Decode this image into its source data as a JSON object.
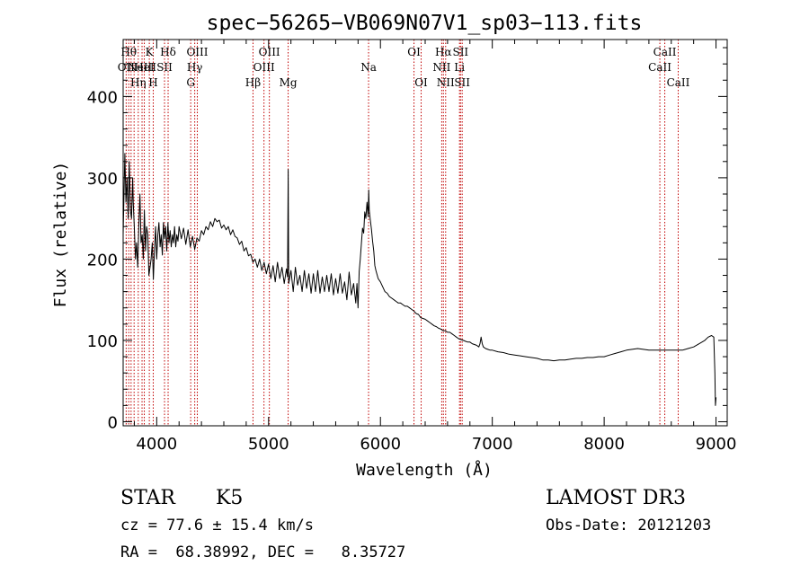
{
  "chart_data": {
    "type": "line",
    "title": "spec−56265−VB069N07V1_sp03−113.fits",
    "xlabel": "Wavelength (Å)",
    "ylabel": "Flux (relative)",
    "xlim": [
      3700,
      9100
    ],
    "ylim": [
      -5,
      470
    ],
    "x_ticks": [
      4000,
      5000,
      6000,
      7000,
      8000,
      9000
    ],
    "y_ticks": [
      0,
      100,
      200,
      300,
      400
    ],
    "series": [
      {
        "name": "flux",
        "points": [
          [
            3700,
            230
          ],
          [
            3715,
            330
          ],
          [
            3725,
            270
          ],
          [
            3735,
            300
          ],
          [
            3745,
            250
          ],
          [
            3755,
            320
          ],
          [
            3765,
            260
          ],
          [
            3775,
            250
          ],
          [
            3785,
            300
          ],
          [
            3790,
            270
          ],
          [
            3800,
            240
          ],
          [
            3810,
            200
          ],
          [
            3820,
            220
          ],
          [
            3830,
            190
          ],
          [
            3840,
            240
          ],
          [
            3850,
            280
          ],
          [
            3860,
            220
          ],
          [
            3870,
            230
          ],
          [
            3880,
            200
          ],
          [
            3890,
            260
          ],
          [
            3900,
            210
          ],
          [
            3910,
            240
          ],
          [
            3920,
            230
          ],
          [
            3930,
            180
          ],
          [
            3940,
            190
          ],
          [
            3950,
            200
          ],
          [
            3960,
            220
          ],
          [
            3970,
            175
          ],
          [
            3980,
            210
          ],
          [
            3990,
            240
          ],
          [
            4000,
            200
          ],
          [
            4010,
            230
          ],
          [
            4020,
            245
          ],
          [
            4030,
            215
          ],
          [
            4040,
            230
          ],
          [
            4050,
            205
          ],
          [
            4060,
            245
          ],
          [
            4070,
            225
          ],
          [
            4080,
            240
          ],
          [
            4090,
            210
          ],
          [
            4100,
            245
          ],
          [
            4110,
            220
          ],
          [
            4120,
            235
          ],
          [
            4130,
            215
          ],
          [
            4140,
            230
          ],
          [
            4150,
            220
          ],
          [
            4160,
            240
          ],
          [
            4170,
            215
          ],
          [
            4180,
            230
          ],
          [
            4190,
            222
          ],
          [
            4200,
            240
          ],
          [
            4220,
            225
          ],
          [
            4240,
            238
          ],
          [
            4260,
            218
          ],
          [
            4280,
            236
          ],
          [
            4300,
            215
          ],
          [
            4320,
            228
          ],
          [
            4340,
            212
          ],
          [
            4360,
            226
          ],
          [
            4380,
            222
          ],
          [
            4400,
            235
          ],
          [
            4420,
            230
          ],
          [
            4440,
            240
          ],
          [
            4460,
            236
          ],
          [
            4480,
            246
          ],
          [
            4500,
            240
          ],
          [
            4520,
            250
          ],
          [
            4540,
            246
          ],
          [
            4560,
            248
          ],
          [
            4580,
            238
          ],
          [
            4600,
            242
          ],
          [
            4620,
            236
          ],
          [
            4640,
            240
          ],
          [
            4660,
            230
          ],
          [
            4680,
            236
          ],
          [
            4700,
            228
          ],
          [
            4720,
            226
          ],
          [
            4740,
            218
          ],
          [
            4760,
            222
          ],
          [
            4780,
            210
          ],
          [
            4800,
            214
          ],
          [
            4820,
            204
          ],
          [
            4840,
            206
          ],
          [
            4860,
            196
          ],
          [
            4880,
            200
          ],
          [
            4900,
            190
          ],
          [
            4920,
            200
          ],
          [
            4940,
            186
          ],
          [
            4960,
            196
          ],
          [
            4980,
            182
          ],
          [
            5000,
            194
          ],
          [
            5020,
            176
          ],
          [
            5040,
            192
          ],
          [
            5060,
            172
          ],
          [
            5080,
            196
          ],
          [
            5100,
            176
          ],
          [
            5120,
            190
          ],
          [
            5140,
            170
          ],
          [
            5160,
            188
          ],
          [
            5170,
            178
          ],
          [
            5175,
            310
          ],
          [
            5180,
            170
          ],
          [
            5200,
            186
          ],
          [
            5220,
            160
          ],
          [
            5240,
            190
          ],
          [
            5260,
            168
          ],
          [
            5280,
            180
          ],
          [
            5300,
            160
          ],
          [
            5320,
            186
          ],
          [
            5340,
            164
          ],
          [
            5360,
            182
          ],
          [
            5380,
            158
          ],
          [
            5400,
            182
          ],
          [
            5420,
            160
          ],
          [
            5440,
            186
          ],
          [
            5460,
            158
          ],
          [
            5480,
            178
          ],
          [
            5500,
            160
          ],
          [
            5520,
            180
          ],
          [
            5540,
            160
          ],
          [
            5560,
            182
          ],
          [
            5580,
            156
          ],
          [
            5600,
            176
          ],
          [
            5620,
            158
          ],
          [
            5640,
            182
          ],
          [
            5660,
            158
          ],
          [
            5680,
            172
          ],
          [
            5700,
            150
          ],
          [
            5720,
            184
          ],
          [
            5740,
            156
          ],
          [
            5760,
            170
          ],
          [
            5780,
            146
          ],
          [
            5790,
            170
          ],
          [
            5800,
            140
          ],
          [
            5810,
            185
          ],
          [
            5820,
            200
          ],
          [
            5830,
            220
          ],
          [
            5840,
            238
          ],
          [
            5850,
            232
          ],
          [
            5860,
            258
          ],
          [
            5870,
            250
          ],
          [
            5880,
            270
          ],
          [
            5890,
            252
          ],
          [
            5895,
            285
          ],
          [
            5900,
            260
          ],
          [
            5910,
            248
          ],
          [
            5920,
            236
          ],
          [
            5930,
            222
          ],
          [
            5940,
            210
          ],
          [
            5950,
            192
          ],
          [
            5960,
            186
          ],
          [
            5980,
            176
          ],
          [
            6000,
            172
          ],
          [
            6020,
            166
          ],
          [
            6040,
            160
          ],
          [
            6060,
            158
          ],
          [
            6080,
            154
          ],
          [
            6100,
            152
          ],
          [
            6120,
            150
          ],
          [
            6140,
            148
          ],
          [
            6160,
            146
          ],
          [
            6180,
            146
          ],
          [
            6200,
            144
          ],
          [
            6220,
            142
          ],
          [
            6240,
            142
          ],
          [
            6260,
            140
          ],
          [
            6280,
            138
          ],
          [
            6300,
            136
          ],
          [
            6320,
            133
          ],
          [
            6340,
            132
          ],
          [
            6360,
            128
          ],
          [
            6380,
            127
          ],
          [
            6400,
            126
          ],
          [
            6420,
            124
          ],
          [
            6440,
            122
          ],
          [
            6460,
            120
          ],
          [
            6480,
            118
          ],
          [
            6500,
            117
          ],
          [
            6520,
            115
          ],
          [
            6540,
            114
          ],
          [
            6560,
            112
          ],
          [
            6580,
            112
          ],
          [
            6600,
            110
          ],
          [
            6620,
            110
          ],
          [
            6640,
            108
          ],
          [
            6660,
            106
          ],
          [
            6680,
            104
          ],
          [
            6700,
            102
          ],
          [
            6720,
            101
          ],
          [
            6740,
            100
          ],
          [
            6760,
            99
          ],
          [
            6780,
            98
          ],
          [
            6800,
            98
          ],
          [
            6820,
            96
          ],
          [
            6840,
            95
          ],
          [
            6860,
            94
          ],
          [
            6880,
            92
          ],
          [
            6890,
            96
          ],
          [
            6900,
            104
          ],
          [
            6910,
            96
          ],
          [
            6920,
            92
          ],
          [
            6940,
            90
          ],
          [
            6960,
            89
          ],
          [
            6980,
            88
          ],
          [
            7000,
            88
          ],
          [
            7050,
            86
          ],
          [
            7100,
            85
          ],
          [
            7150,
            83
          ],
          [
            7200,
            82
          ],
          [
            7250,
            81
          ],
          [
            7300,
            80
          ],
          [
            7350,
            79
          ],
          [
            7400,
            78
          ],
          [
            7450,
            76
          ],
          [
            7500,
            76
          ],
          [
            7550,
            75
          ],
          [
            7600,
            76
          ],
          [
            7650,
            76
          ],
          [
            7700,
            77
          ],
          [
            7750,
            78
          ],
          [
            7800,
            78
          ],
          [
            7850,
            79
          ],
          [
            7900,
            79
          ],
          [
            7950,
            80
          ],
          [
            8000,
            80
          ],
          [
            8050,
            82
          ],
          [
            8100,
            84
          ],
          [
            8150,
            86
          ],
          [
            8200,
            88
          ],
          [
            8250,
            89
          ],
          [
            8300,
            90
          ],
          [
            8350,
            89
          ],
          [
            8400,
            88
          ],
          [
            8450,
            88
          ],
          [
            8500,
            88
          ],
          [
            8550,
            88
          ],
          [
            8600,
            88
          ],
          [
            8650,
            88
          ],
          [
            8700,
            88
          ],
          [
            8750,
            90
          ],
          [
            8800,
            92
          ],
          [
            8850,
            96
          ],
          [
            8900,
            100
          ],
          [
            8930,
            104
          ],
          [
            8960,
            106
          ],
          [
            8980,
            104
          ],
          [
            8990,
            60
          ],
          [
            8995,
            20
          ],
          [
            9000,
            30
          ]
        ]
      }
    ],
    "lines": [
      {
        "x": 3727,
        "labels": [
          "OII"
        ],
        "row": 2,
        "type": "em"
      },
      {
        "x": 3750,
        "labels": [
          "Hθ"
        ],
        "row": 1,
        "type": "abs"
      },
      {
        "x": 3771,
        "labels": [],
        "row": 0,
        "type": "abs"
      },
      {
        "x": 3798,
        "labels": [],
        "row": 0,
        "type": "abs"
      },
      {
        "x": 3835,
        "labels": [
          "Hη"
        ],
        "row": 3,
        "type": "abs"
      },
      {
        "x": 3869,
        "labels": [
          "NeIII"
        ],
        "row": 2,
        "type": "em"
      },
      {
        "x": 3889,
        "labels": [
          "HeI"
        ],
        "row": 2,
        "type": "em"
      },
      {
        "x": 3934,
        "labels": [
          "K"
        ],
        "row": 1,
        "type": "abs"
      },
      {
        "x": 3969,
        "labels": [
          "H"
        ],
        "row": 3,
        "type": "abs"
      },
      {
        "x": 4070,
        "labels": [
          "SII"
        ],
        "row": 2,
        "type": "em"
      },
      {
        "x": 4102,
        "labels": [
          "Hδ"
        ],
        "row": 1,
        "type": "abs"
      },
      {
        "x": 4304,
        "labels": [
          "G"
        ],
        "row": 3,
        "type": "abs"
      },
      {
        "x": 4340,
        "labels": [
          "Hγ"
        ],
        "row": 2,
        "type": "abs"
      },
      {
        "x": 4363,
        "labels": [
          "OIII"
        ],
        "row": 1,
        "type": "em"
      },
      {
        "x": 4861,
        "labels": [
          "Hβ"
        ],
        "row": 3,
        "type": "abs"
      },
      {
        "x": 4959,
        "labels": [
          "OIII"
        ],
        "row": 2,
        "type": "em"
      },
      {
        "x": 5007,
        "labels": [
          "OIII"
        ],
        "row": 1,
        "type": "em"
      },
      {
        "x": 5175,
        "labels": [
          "Mg"
        ],
        "row": 3,
        "type": "abs"
      },
      {
        "x": 5894,
        "labels": [
          "Na"
        ],
        "row": 2,
        "type": "abs"
      },
      {
        "x": 6300,
        "labels": [
          "OI"
        ],
        "row": 1,
        "type": "em"
      },
      {
        "x": 6364,
        "labels": [
          "OI"
        ],
        "row": 3,
        "type": "em"
      },
      {
        "x": 6548,
        "labels": [
          "NII"
        ],
        "row": 2,
        "type": "em"
      },
      {
        "x": 6563,
        "labels": [
          "Hα"
        ],
        "row": 1,
        "type": "abs"
      },
      {
        "x": 6583,
        "labels": [
          "NII"
        ],
        "row": 3,
        "type": "em"
      },
      {
        "x": 6707,
        "labels": [
          "Li"
        ],
        "row": 2,
        "type": "abs"
      },
      {
        "x": 6716,
        "labels": [
          "SII"
        ],
        "row": 1,
        "type": "em"
      },
      {
        "x": 6731,
        "labels": [
          "SII"
        ],
        "row": 3,
        "type": "em"
      },
      {
        "x": 8498,
        "labels": [
          "CaII"
        ],
        "row": 2,
        "type": "abs"
      },
      {
        "x": 8542,
        "labels": [
          "CaII"
        ],
        "row": 1,
        "type": "abs"
      },
      {
        "x": 8662,
        "labels": [
          "CaII"
        ],
        "row": 3,
        "type": "abs"
      }
    ],
    "colors": {
      "line": "#000000",
      "marker": "#c00000"
    }
  },
  "info": {
    "class_label": "STAR",
    "subclass": "K5",
    "survey": "LAMOST DR3",
    "cz_text": "cz = 77.6 ± 15.4 km/s",
    "obs_date": "Obs-Date: 20121203",
    "radec_text": "RA =  68.38992, DEC =   8.35727"
  }
}
